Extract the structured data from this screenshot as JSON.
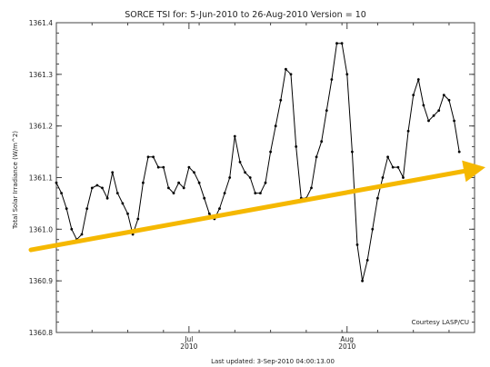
{
  "chart_data": {
    "type": "line",
    "title": "SORCE TSI for:  5-Jun-2010 to 26-Aug-2010 Version = 10",
    "ylabel": "Total Solar Irradiance (W/m^2)",
    "xlabel": "",
    "footer": "Last updated:  3-Sep-2010 04:00:13.00",
    "annotation": "Courtesy LASP/CU",
    "x_start": "2010-06-05",
    "x_end": "2010-08-26",
    "ylim": [
      1360.8,
      1361.4
    ],
    "yticks": [
      {
        "value": 1360.8,
        "label": "1360.8"
      },
      {
        "value": 1360.9,
        "label": "1360.9"
      },
      {
        "value": 1361.0,
        "label": "1361.0"
      },
      {
        "value": 1361.1,
        "label": "1361.1"
      },
      {
        "value": 1361.2,
        "label": "1361.2"
      },
      {
        "value": 1361.3,
        "label": "1361.3"
      },
      {
        "value": 1361.4,
        "label": "1361.4"
      }
    ],
    "xticks": [
      {
        "date": "2010-07-01",
        "label": "Jul",
        "sublabel": "2010"
      },
      {
        "date": "2010-08-01",
        "label": "Aug",
        "sublabel": "2010"
      }
    ],
    "grid": false,
    "series": [
      {
        "color": "#000000",
        "x": [
          "2010-06-05",
          "2010-06-06",
          "2010-06-07",
          "2010-06-08",
          "2010-06-09",
          "2010-06-10",
          "2010-06-11",
          "2010-06-12",
          "2010-06-13",
          "2010-06-14",
          "2010-06-15",
          "2010-06-16",
          "2010-06-17",
          "2010-06-18",
          "2010-06-19",
          "2010-06-20",
          "2010-06-21",
          "2010-06-22",
          "2010-06-23",
          "2010-06-24",
          "2010-06-25",
          "2010-06-26",
          "2010-06-27",
          "2010-06-28",
          "2010-06-29",
          "2010-06-30",
          "2010-07-01",
          "2010-07-02",
          "2010-07-03",
          "2010-07-04",
          "2010-07-05",
          "2010-07-06",
          "2010-07-07",
          "2010-07-08",
          "2010-07-09",
          "2010-07-10",
          "2010-07-11",
          "2010-07-12",
          "2010-07-13",
          "2010-07-14",
          "2010-07-15",
          "2010-07-16",
          "2010-07-17",
          "2010-07-18",
          "2010-07-19",
          "2010-07-20",
          "2010-07-21",
          "2010-07-22",
          "2010-07-23",
          "2010-07-24",
          "2010-07-25",
          "2010-07-26",
          "2010-07-27",
          "2010-07-28",
          "2010-07-29",
          "2010-07-30",
          "2010-07-31",
          "2010-08-01",
          "2010-08-02",
          "2010-08-03",
          "2010-08-04",
          "2010-08-05",
          "2010-08-06",
          "2010-08-07",
          "2010-08-08",
          "2010-08-09",
          "2010-08-10",
          "2010-08-11",
          "2010-08-12",
          "2010-08-13",
          "2010-08-14",
          "2010-08-15",
          "2010-08-16",
          "2010-08-17",
          "2010-08-18",
          "2010-08-19",
          "2010-08-20",
          "2010-08-21",
          "2010-08-22",
          "2010-08-23"
        ],
        "y": [
          1361.09,
          1361.07,
          1361.04,
          1361.0,
          1360.98,
          1360.99,
          1361.04,
          1361.08,
          1361.085,
          1361.08,
          1361.06,
          1361.11,
          1361.07,
          1361.05,
          1361.03,
          1360.99,
          1361.02,
          1361.09,
          1361.14,
          1361.14,
          1361.12,
          1361.12,
          1361.08,
          1361.07,
          1361.09,
          1361.08,
          1361.12,
          1361.11,
          1361.09,
          1361.06,
          1361.03,
          1361.02,
          1361.04,
          1361.07,
          1361.1,
          1361.18,
          1361.13,
          1361.11,
          1361.1,
          1361.07,
          1361.07,
          1361.09,
          1361.15,
          1361.2,
          1361.25,
          1361.31,
          1361.3,
          1361.16,
          1361.06,
          1361.06,
          1361.08,
          1361.14,
          1361.17,
          1361.23,
          1361.29,
          1361.36,
          1361.36,
          1361.3,
          1361.15,
          1360.97,
          1360.9,
          1360.94,
          1361.0,
          1361.06,
          1361.1,
          1361.14,
          1361.12,
          1361.12,
          1361.1,
          1361.19,
          1361.26,
          1361.29,
          1361.24,
          1361.21,
          1361.22,
          1361.23,
          1361.26,
          1361.25,
          1361.21,
          1361.15
        ]
      }
    ],
    "trend_arrow": {
      "color": "#f5b800",
      "start": {
        "date": "2010-06-05",
        "value": 1360.96
      },
      "end": {
        "date": "2010-08-29",
        "value": 1361.12
      }
    }
  }
}
